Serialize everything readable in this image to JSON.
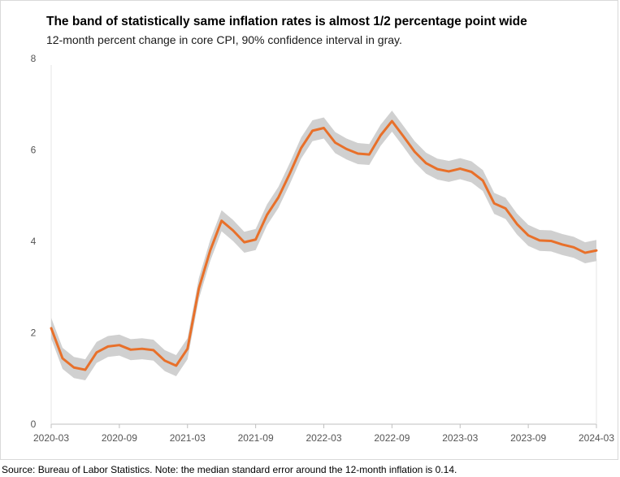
{
  "chart_data": {
    "type": "line",
    "title": "The band of statistically same inflation rates is almost 1/2 percentage point wide",
    "subtitle": "12-month percent change in core CPI, 90% confidence interval in gray.",
    "source": "Source: Bureau of Labor Statistics. Note: the median standard error around the 12-month inflation is 0.14.",
    "xlabel": "",
    "ylabel": "",
    "ylim": [
      0,
      8
    ],
    "yticks": [
      "0",
      "2",
      "4",
      "6",
      "8"
    ],
    "x_tick_labels": [
      "2020-03",
      "2020-09",
      "2021-03",
      "2021-09",
      "2022-03",
      "2022-09",
      "2023-03",
      "2023-09",
      "2024-03"
    ],
    "x_tick_indices": [
      0,
      6,
      12,
      18,
      24,
      30,
      36,
      42,
      48
    ],
    "x": [
      "2020-03",
      "2020-04",
      "2020-05",
      "2020-06",
      "2020-07",
      "2020-08",
      "2020-09",
      "2020-10",
      "2020-11",
      "2020-12",
      "2021-01",
      "2021-02",
      "2021-03",
      "2021-04",
      "2021-05",
      "2021-06",
      "2021-07",
      "2021-08",
      "2021-09",
      "2021-10",
      "2021-11",
      "2021-12",
      "2022-01",
      "2022-02",
      "2022-03",
      "2022-04",
      "2022-05",
      "2022-06",
      "2022-07",
      "2022-08",
      "2022-09",
      "2022-10",
      "2022-11",
      "2022-12",
      "2023-01",
      "2023-02",
      "2023-03",
      "2023-04",
      "2023-05",
      "2023-06",
      "2023-07",
      "2023-08",
      "2023-09",
      "2023-10",
      "2023-11",
      "2023-12",
      "2024-01",
      "2024-02",
      "2024-03"
    ],
    "series": [
      {
        "name": "Core CPI 12-month % change",
        "color": "#e8702a",
        "values": [
          2.1,
          1.44,
          1.24,
          1.19,
          1.57,
          1.7,
          1.73,
          1.63,
          1.65,
          1.62,
          1.39,
          1.28,
          1.65,
          2.97,
          3.8,
          4.45,
          4.24,
          3.98,
          4.04,
          4.58,
          4.96,
          5.48,
          6.04,
          6.42,
          6.48,
          6.16,
          6.02,
          5.92,
          5.9,
          6.32,
          6.63,
          6.3,
          5.96,
          5.71,
          5.58,
          5.53,
          5.59,
          5.52,
          5.33,
          4.83,
          4.72,
          4.38,
          4.13,
          4.02,
          4.01,
          3.93,
          3.87,
          3.75,
          3.8
        ]
      }
    ],
    "confidence_band": {
      "label": "90% confidence interval",
      "color": "#d0d0d0",
      "half_width": 0.23
    }
  }
}
